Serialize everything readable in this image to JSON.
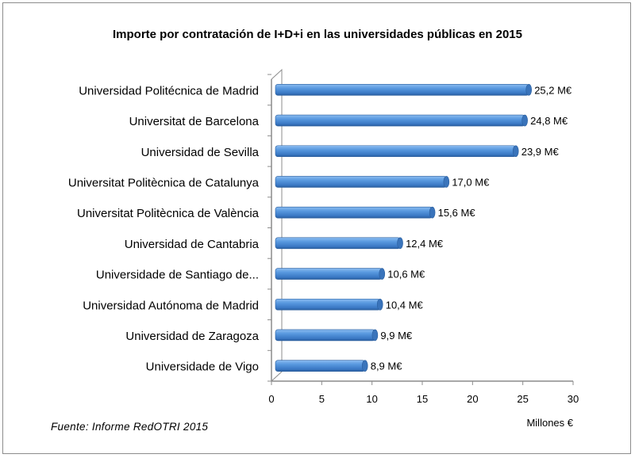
{
  "chart_data": {
    "type": "bar",
    "orientation": "horizontal",
    "title": "Importe por contratación  de I+D+i en las universidades públicas en 2015",
    "categories": [
      "Universidad Politécnica de Madrid",
      "Universitat de Barcelona",
      "Universidad de Sevilla",
      "Universitat Politècnica de Catalunya",
      "Universitat Politècnica de València",
      "Universidad de Cantabria",
      "Universidade de Santiago de...",
      "Universidad Autónoma de Madrid",
      "Universidad de Zaragoza",
      "Universidade de Vigo"
    ],
    "values": [
      25.2,
      24.8,
      23.9,
      17.0,
      15.6,
      12.4,
      10.6,
      10.4,
      9.9,
      8.9
    ],
    "data_labels": [
      "25,2 M€",
      "24,8 M€",
      "23,9 M€",
      "17,0 M€",
      "15,6 M€",
      "12,4 M€",
      "10,6 M€",
      "10,4 M€",
      "9,9 M€",
      "8,9 M€"
    ],
    "xlabel": "Millones €",
    "ylabel": "",
    "xlim": [
      0,
      30
    ],
    "xticks": [
      "0",
      "5",
      "10",
      "15",
      "20",
      "25",
      "30"
    ],
    "grid": false,
    "bar_color": "#4f8fd6",
    "style": "3d-cylinder"
  },
  "footer": {
    "source": "Fuente: Informe RedOTRI 2015"
  }
}
